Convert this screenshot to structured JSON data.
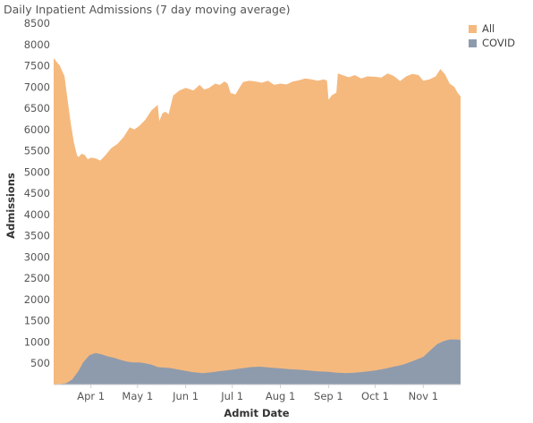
{
  "chart_data": {
    "type": "area",
    "title": "Daily Inpatient Admissions (7 day moving average)",
    "xlabel": "Admit Date",
    "ylabel": "Admissions",
    "ylim": [
      0,
      8500
    ],
    "yticks": [
      500,
      1000,
      1500,
      2000,
      2500,
      3000,
      3500,
      4000,
      4500,
      5000,
      5500,
      6000,
      6500,
      7000,
      7500,
      8000,
      8500
    ],
    "xlim": [
      "2020-03-08",
      "2020-11-25"
    ],
    "xticks": [
      {
        "date": "2020-04-01",
        "label": "Apr 1"
      },
      {
        "date": "2020-05-01",
        "label": "May 1"
      },
      {
        "date": "2020-06-01",
        "label": "Jun 1"
      },
      {
        "date": "2020-07-01",
        "label": "Jul 1"
      },
      {
        "date": "2020-08-01",
        "label": "Aug 1"
      },
      {
        "date": "2020-09-01",
        "label": "Sep 1"
      },
      {
        "date": "2020-10-01",
        "label": "Oct 1"
      },
      {
        "date": "2020-11-01",
        "label": "Nov 1"
      }
    ],
    "grid": false,
    "legend": "right",
    "series": [
      {
        "name": "All",
        "color": "#F5B97E",
        "points": [
          [
            "2020-03-08",
            7680
          ],
          [
            "2020-03-12",
            7500
          ],
          [
            "2020-03-15",
            7250
          ],
          [
            "2020-03-17",
            6700
          ],
          [
            "2020-03-19",
            6150
          ],
          [
            "2020-03-21",
            5700
          ],
          [
            "2020-03-23",
            5400
          ],
          [
            "2020-03-24",
            5350
          ],
          [
            "2020-03-26",
            5430
          ],
          [
            "2020-03-28",
            5400
          ],
          [
            "2020-03-30",
            5300
          ],
          [
            "2020-04-01",
            5340
          ],
          [
            "2020-04-04",
            5320
          ],
          [
            "2020-04-07",
            5270
          ],
          [
            "2020-04-10",
            5380
          ],
          [
            "2020-04-14",
            5560
          ],
          [
            "2020-04-18",
            5660
          ],
          [
            "2020-04-22",
            5820
          ],
          [
            "2020-04-26",
            6050
          ],
          [
            "2020-04-29",
            6000
          ],
          [
            "2020-05-02",
            6080
          ],
          [
            "2020-05-06",
            6230
          ],
          [
            "2020-05-10",
            6450
          ],
          [
            "2020-05-14",
            6580
          ],
          [
            "2020-05-15",
            6200
          ],
          [
            "2020-05-17",
            6380
          ],
          [
            "2020-05-19",
            6420
          ],
          [
            "2020-05-21",
            6360
          ],
          [
            "2020-05-24",
            6800
          ],
          [
            "2020-05-28",
            6920
          ],
          [
            "2020-06-01",
            6980
          ],
          [
            "2020-06-06",
            6920
          ],
          [
            "2020-06-10",
            7050
          ],
          [
            "2020-06-13",
            6940
          ],
          [
            "2020-06-16",
            6980
          ],
          [
            "2020-06-20",
            7080
          ],
          [
            "2020-06-23",
            7050
          ],
          [
            "2020-06-26",
            7130
          ],
          [
            "2020-06-28",
            7080
          ],
          [
            "2020-06-30",
            6850
          ],
          [
            "2020-07-01",
            6850
          ],
          [
            "2020-07-03",
            6820
          ],
          [
            "2020-07-05",
            6950
          ],
          [
            "2020-07-08",
            7120
          ],
          [
            "2020-07-12",
            7150
          ],
          [
            "2020-07-16",
            7130
          ],
          [
            "2020-07-20",
            7100
          ],
          [
            "2020-07-24",
            7150
          ],
          [
            "2020-07-28",
            7050
          ],
          [
            "2020-08-01",
            7080
          ],
          [
            "2020-08-05",
            7060
          ],
          [
            "2020-08-09",
            7130
          ],
          [
            "2020-08-13",
            7160
          ],
          [
            "2020-08-17",
            7200
          ],
          [
            "2020-08-21",
            7180
          ],
          [
            "2020-08-25",
            7150
          ],
          [
            "2020-08-29",
            7180
          ],
          [
            "2020-08-31",
            7150
          ],
          [
            "2020-09-01",
            6700
          ],
          [
            "2020-09-03",
            6800
          ],
          [
            "2020-09-06",
            6870
          ],
          [
            "2020-09-07",
            7320
          ],
          [
            "2020-09-10",
            7280
          ],
          [
            "2020-09-14",
            7230
          ],
          [
            "2020-09-18",
            7280
          ],
          [
            "2020-09-22",
            7200
          ],
          [
            "2020-09-26",
            7250
          ],
          [
            "2020-10-01",
            7240
          ],
          [
            "2020-10-05",
            7220
          ],
          [
            "2020-10-09",
            7320
          ],
          [
            "2020-10-13",
            7260
          ],
          [
            "2020-10-17",
            7140
          ],
          [
            "2020-10-21",
            7250
          ],
          [
            "2020-10-25",
            7310
          ],
          [
            "2020-10-29",
            7280
          ],
          [
            "2020-11-01",
            7150
          ],
          [
            "2020-11-05",
            7180
          ],
          [
            "2020-11-09",
            7250
          ],
          [
            "2020-11-12",
            7420
          ],
          [
            "2020-11-15",
            7300
          ],
          [
            "2020-11-18",
            7080
          ],
          [
            "2020-11-21",
            7000
          ],
          [
            "2020-11-23",
            6870
          ],
          [
            "2020-11-25",
            6780
          ]
        ]
      },
      {
        "name": "COVID",
        "color": "#8E9BAD",
        "points": [
          [
            "2020-03-08",
            0
          ],
          [
            "2020-03-12",
            10
          ],
          [
            "2020-03-16",
            30
          ],
          [
            "2020-03-20",
            120
          ],
          [
            "2020-03-24",
            320
          ],
          [
            "2020-03-27",
            520
          ],
          [
            "2020-03-31",
            690
          ],
          [
            "2020-04-04",
            740
          ],
          [
            "2020-04-08",
            710
          ],
          [
            "2020-04-12",
            660
          ],
          [
            "2020-04-16",
            630
          ],
          [
            "2020-04-20",
            580
          ],
          [
            "2020-04-24",
            540
          ],
          [
            "2020-04-28",
            520
          ],
          [
            "2020-05-02",
            520
          ],
          [
            "2020-05-06",
            500
          ],
          [
            "2020-05-10",
            470
          ],
          [
            "2020-05-14",
            410
          ],
          [
            "2020-05-18",
            400
          ],
          [
            "2020-05-22",
            390
          ],
          [
            "2020-05-26",
            360
          ],
          [
            "2020-06-01",
            320
          ],
          [
            "2020-06-06",
            290
          ],
          [
            "2020-06-12",
            270
          ],
          [
            "2020-06-18",
            290
          ],
          [
            "2020-06-24",
            320
          ],
          [
            "2020-07-01",
            350
          ],
          [
            "2020-07-07",
            380
          ],
          [
            "2020-07-13",
            410
          ],
          [
            "2020-07-19",
            420
          ],
          [
            "2020-07-25",
            400
          ],
          [
            "2020-08-01",
            380
          ],
          [
            "2020-08-07",
            360
          ],
          [
            "2020-08-13",
            350
          ],
          [
            "2020-08-19",
            330
          ],
          [
            "2020-08-25",
            310
          ],
          [
            "2020-09-01",
            300
          ],
          [
            "2020-09-06",
            280
          ],
          [
            "2020-09-12",
            270
          ],
          [
            "2020-09-18",
            280
          ],
          [
            "2020-09-24",
            300
          ],
          [
            "2020-10-01",
            330
          ],
          [
            "2020-10-07",
            370
          ],
          [
            "2020-10-13",
            420
          ],
          [
            "2020-10-19",
            470
          ],
          [
            "2020-10-25",
            550
          ],
          [
            "2020-11-01",
            650
          ],
          [
            "2020-11-06",
            820
          ],
          [
            "2020-11-10",
            950
          ],
          [
            "2020-11-14",
            1020
          ],
          [
            "2020-11-18",
            1060
          ],
          [
            "2020-11-22",
            1060
          ],
          [
            "2020-11-25",
            1050
          ]
        ]
      }
    ]
  }
}
